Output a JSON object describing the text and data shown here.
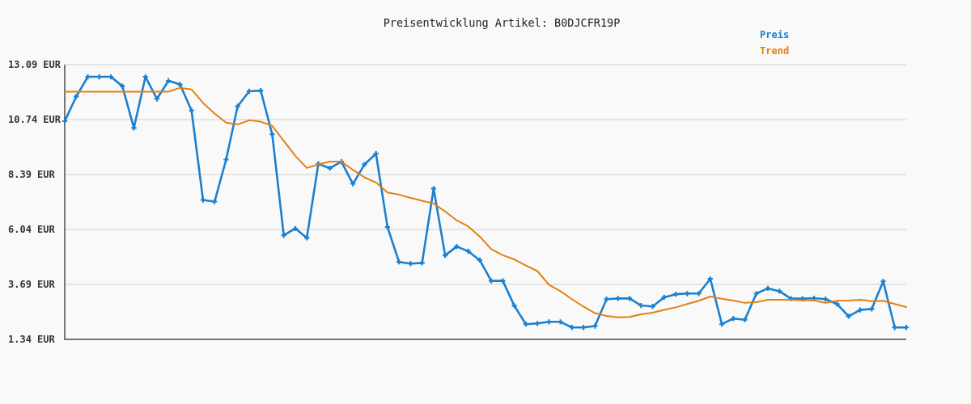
{
  "chart_data": {
    "type": "line",
    "title": "Preisentwicklung Artikel: B0DJCFR19P",
    "categories": [
      null,
      null,
      null,
      null,
      null,
      null,
      null,
      null,
      null,
      null,
      null,
      null,
      null,
      null,
      null,
      null,
      null,
      null,
      null,
      null,
      null,
      null,
      null,
      null,
      null,
      null,
      null,
      null,
      null,
      null,
      null,
      null,
      null,
      null,
      null,
      null,
      null,
      null,
      null,
      null,
      null,
      null,
      null,
      null,
      null,
      null,
      null,
      null,
      null,
      null,
      null,
      null,
      null,
      null,
      null,
      null,
      null,
      null,
      null,
      null,
      null,
      null,
      null,
      null,
      null,
      null,
      null,
      null,
      null,
      null,
      null,
      null,
      null,
      null
    ],
    "series": [
      {
        "name": "Preis",
        "color": "#1a80d0",
        "marker": "cross",
        "values": [
          10.67,
          11.73,
          12.57,
          12.57,
          12.57,
          12.17,
          10.38,
          12.57,
          11.63,
          12.4,
          12.24,
          11.13,
          7.3,
          7.23,
          9.03,
          11.31,
          11.95,
          11.98,
          10.11,
          5.79,
          6.08,
          5.68,
          8.85,
          8.66,
          8.94,
          7.99,
          8.82,
          9.28,
          6.14,
          4.65,
          4.58,
          4.61,
          7.79,
          4.93,
          5.31,
          5.11,
          4.73,
          3.84,
          3.84,
          2.78,
          1.99,
          2.02,
          2.09,
          2.09,
          1.85,
          1.85,
          1.91,
          3.06,
          3.09,
          3.09,
          2.79,
          2.75,
          3.14,
          3.27,
          3.3,
          3.3,
          3.93,
          1.99,
          2.23,
          2.18,
          3.3,
          3.52,
          3.4,
          3.08,
          3.08,
          3.1,
          3.06,
          2.85,
          2.33,
          2.6,
          2.64,
          3.82,
          1.85,
          1.85
        ]
      },
      {
        "name": "Trend",
        "color": "#e3800f",
        "values": [
          11.93,
          11.93,
          11.93,
          11.93,
          11.93,
          11.93,
          11.93,
          11.93,
          11.93,
          11.93,
          12.1,
          12.03,
          11.45,
          11.0,
          10.61,
          10.53,
          10.71,
          10.65,
          10.47,
          9.83,
          9.19,
          8.67,
          8.82,
          8.94,
          8.94,
          8.59,
          8.27,
          8.05,
          7.62,
          7.53,
          7.39,
          7.27,
          7.15,
          6.81,
          6.43,
          6.17,
          5.74,
          5.2,
          4.94,
          4.76,
          4.5,
          4.26,
          3.68,
          3.4,
          3.06,
          2.74,
          2.46,
          2.34,
          2.28,
          2.3,
          2.41,
          2.48,
          2.6,
          2.71,
          2.85,
          2.99,
          3.17,
          3.08,
          3.0,
          2.9,
          2.93,
          3.03,
          3.03,
          3.03,
          3.01,
          3.01,
          2.9,
          2.99,
          3.0,
          3.03,
          2.97,
          2.99,
          2.85,
          2.72
        ]
      }
    ],
    "ylim": [
      1.34,
      13.09
    ],
    "yticks": [
      {
        "value": 1.34,
        "label": "1.34 EUR"
      },
      {
        "value": 3.69,
        "label": "3.69 EUR"
      },
      {
        "value": 6.04,
        "label": "6.04 EUR"
      },
      {
        "value": 8.39,
        "label": "8.39 EUR"
      },
      {
        "value": 10.74,
        "label": "10.74 EUR"
      },
      {
        "value": 13.09,
        "label": "13.09 EUR"
      }
    ],
    "grid": "y",
    "legend": "top right"
  }
}
